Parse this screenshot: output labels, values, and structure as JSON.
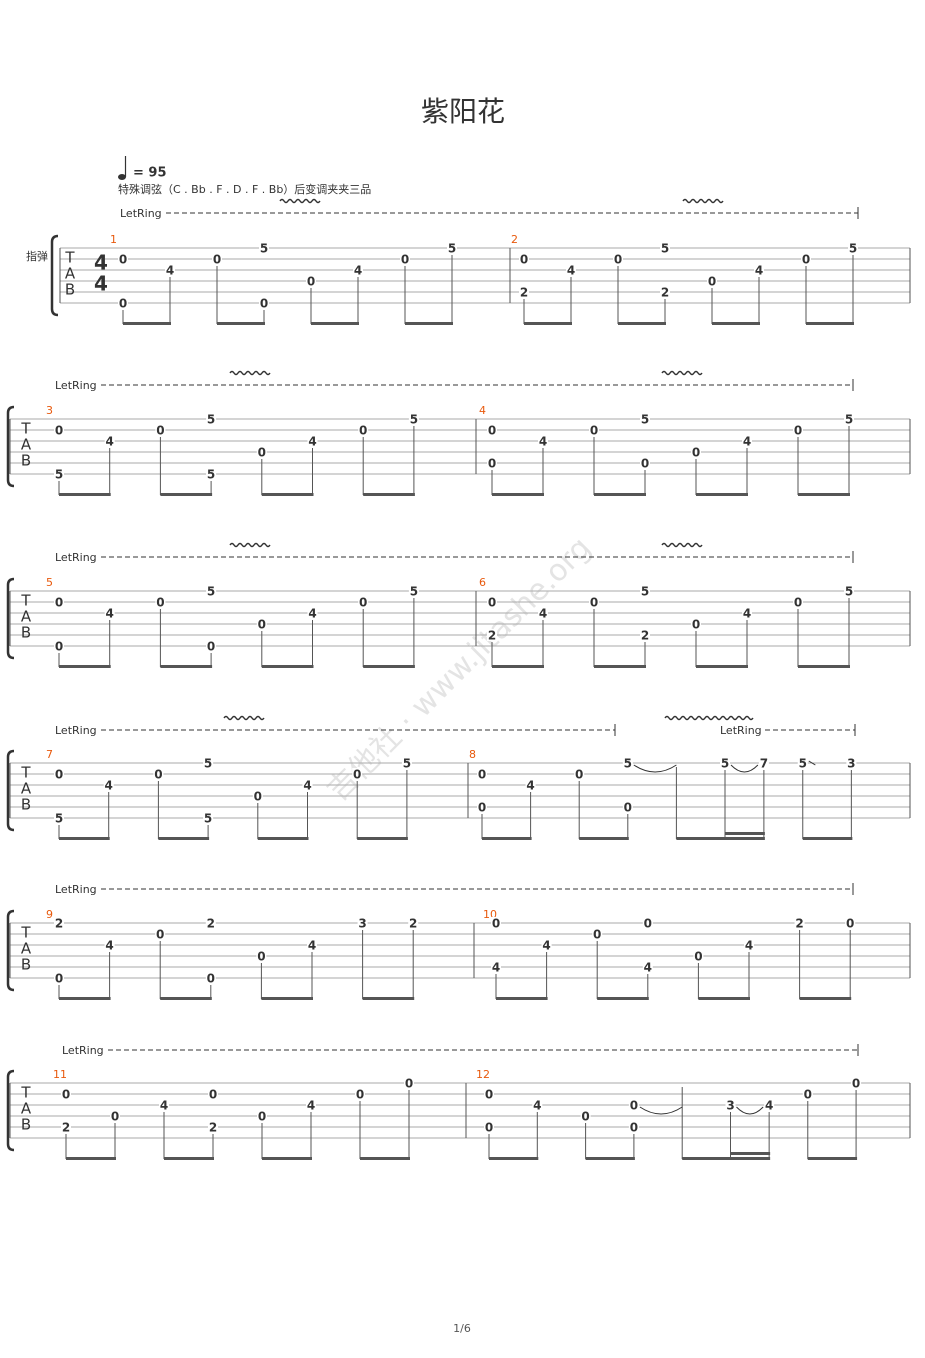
{
  "title": "紫阳花",
  "tempo": "= 95",
  "tuning_note": "特殊调弦（C . Bb . F . D . F . Bb）后变调夹夹三品",
  "instrument": "指弹",
  "tab_clef": [
    "T",
    "A",
    "B"
  ],
  "time_signature": [
    "4",
    "4"
  ],
  "watermark": "吉他社 · www.jitashe.org",
  "page_number": "1/6",
  "systems": [
    {
      "let_ring": [
        "LetRing"
      ],
      "measures": [
        {
          "number": 1,
          "events": [
            [
              [
                2,
                0
              ],
              [
                6,
                0
              ]
            ],
            [
              [
                3,
                4
              ]
            ],
            [
              [
                2,
                0
              ]
            ],
            [
              [
                1,
                5
              ],
              [
                6,
                0
              ]
            ],
            [
              [
                4,
                0
              ]
            ],
            [
              [
                3,
                4
              ]
            ],
            [
              [
                2,
                0
              ]
            ],
            [
              [
                1,
                5
              ]
            ]
          ]
        },
        {
          "number": 2,
          "events": [
            [
              [
                2,
                0
              ],
              [
                5,
                2
              ]
            ],
            [
              [
                3,
                4
              ]
            ],
            [
              [
                2,
                0
              ]
            ],
            [
              [
                1,
                5
              ],
              [
                5,
                2
              ]
            ],
            [
              [
                4,
                0
              ]
            ],
            [
              [
                3,
                4
              ]
            ],
            [
              [
                2,
                0
              ]
            ],
            [
              [
                1,
                5
              ]
            ]
          ]
        }
      ]
    },
    {
      "let_ring": [
        "LetRing"
      ],
      "measures": [
        {
          "number": 3,
          "events": [
            [
              [
                2,
                0
              ],
              [
                6,
                5
              ]
            ],
            [
              [
                3,
                4
              ]
            ],
            [
              [
                2,
                0
              ]
            ],
            [
              [
                1,
                5
              ],
              [
                6,
                5
              ]
            ],
            [
              [
                4,
                0
              ]
            ],
            [
              [
                3,
                4
              ]
            ],
            [
              [
                2,
                0
              ]
            ],
            [
              [
                1,
                5
              ]
            ]
          ]
        },
        {
          "number": 4,
          "events": [
            [
              [
                2,
                0
              ],
              [
                5,
                0
              ]
            ],
            [
              [
                3,
                4
              ]
            ],
            [
              [
                2,
                0
              ]
            ],
            [
              [
                1,
                5
              ],
              [
                5,
                0
              ]
            ],
            [
              [
                4,
                0
              ]
            ],
            [
              [
                3,
                4
              ]
            ],
            [
              [
                2,
                0
              ]
            ],
            [
              [
                1,
                5
              ]
            ]
          ]
        }
      ]
    },
    {
      "let_ring": [
        "LetRing"
      ],
      "measures": [
        {
          "number": 5,
          "events": [
            [
              [
                2,
                0
              ],
              [
                6,
                0
              ]
            ],
            [
              [
                3,
                4
              ]
            ],
            [
              [
                2,
                0
              ]
            ],
            [
              [
                1,
                5
              ],
              [
                6,
                0
              ]
            ],
            [
              [
                4,
                0
              ]
            ],
            [
              [
                3,
                4
              ]
            ],
            [
              [
                2,
                0
              ]
            ],
            [
              [
                1,
                5
              ]
            ]
          ]
        },
        {
          "number": 6,
          "events": [
            [
              [
                2,
                0
              ],
              [
                5,
                2
              ]
            ],
            [
              [
                3,
                4
              ]
            ],
            [
              [
                2,
                0
              ]
            ],
            [
              [
                1,
                5
              ],
              [
                5,
                2
              ]
            ],
            [
              [
                4,
                0
              ]
            ],
            [
              [
                3,
                4
              ]
            ],
            [
              [
                2,
                0
              ]
            ],
            [
              [
                1,
                5
              ]
            ]
          ]
        }
      ]
    },
    {
      "let_ring": [
        "LetRing",
        "LetRing"
      ],
      "measures": [
        {
          "number": 7,
          "events": [
            [
              [
                2,
                0
              ],
              [
                6,
                5
              ]
            ],
            [
              [
                3,
                4
              ]
            ],
            [
              [
                2,
                0
              ]
            ],
            [
              [
                1,
                5
              ],
              [
                6,
                5
              ]
            ],
            [
              [
                4,
                0
              ]
            ],
            [
              [
                3,
                4
              ]
            ],
            [
              [
                2,
                0
              ]
            ],
            [
              [
                1,
                5
              ]
            ]
          ]
        },
        {
          "number": 8,
          "events": [
            [
              [
                2,
                0
              ],
              [
                5,
                0
              ]
            ],
            [
              [
                3,
                4
              ]
            ],
            [
              [
                2,
                0
              ]
            ],
            [
              [
                1,
                5
              ],
              [
                5,
                0
              ]
            ],
            [],
            [
              [
                1,
                5
              ]
            ],
            [
              [
                1,
                7
              ]
            ],
            [
              [
                1,
                5
              ]
            ],
            [
              [
                1,
                3
              ]
            ]
          ]
        }
      ]
    },
    {
      "let_ring": [
        "LetRing"
      ],
      "measures": [
        {
          "number": 9,
          "events": [
            [
              [
                1,
                2
              ],
              [
                6,
                0
              ]
            ],
            [
              [
                3,
                4
              ]
            ],
            [
              [
                2,
                0
              ]
            ],
            [
              [
                1,
                2
              ],
              [
                6,
                0
              ]
            ],
            [
              [
                4,
                0
              ]
            ],
            [
              [
                3,
                4
              ]
            ],
            [
              [
                1,
                3
              ]
            ],
            [
              [
                1,
                2
              ]
            ]
          ]
        },
        {
          "number": 10,
          "events": [
            [
              [
                1,
                0
              ],
              [
                5,
                4
              ]
            ],
            [
              [
                3,
                4
              ]
            ],
            [
              [
                2,
                0
              ]
            ],
            [
              [
                1,
                0
              ],
              [
                5,
                4
              ]
            ],
            [
              [
                4,
                0
              ]
            ],
            [
              [
                3,
                4
              ]
            ],
            [
              [
                1,
                2
              ]
            ],
            [
              [
                1,
                0
              ]
            ]
          ]
        }
      ]
    },
    {
      "let_ring": [
        "LetRing"
      ],
      "measures": [
        {
          "number": 11,
          "events": [
            [
              [
                2,
                0
              ],
              [
                5,
                2
              ]
            ],
            [
              [
                4,
                0
              ]
            ],
            [
              [
                3,
                4
              ]
            ],
            [
              [
                2,
                0
              ],
              [
                5,
                2
              ]
            ],
            [
              [
                4,
                0
              ]
            ],
            [
              [
                3,
                4
              ]
            ],
            [
              [
                2,
                0
              ]
            ],
            [
              [
                1,
                0
              ]
            ]
          ]
        },
        {
          "number": 12,
          "events": [
            [
              [
                2,
                0
              ],
              [
                5,
                0
              ]
            ],
            [
              [
                3,
                4
              ]
            ],
            [
              [
                4,
                0
              ]
            ],
            [
              [
                3,
                0
              ],
              [
                5,
                0
              ]
            ],
            [],
            [
              [
                3,
                3
              ]
            ],
            [
              [
                3,
                4
              ]
            ],
            [
              [
                2,
                0
              ]
            ],
            [
              [
                1,
                0
              ]
            ]
          ]
        }
      ]
    }
  ]
}
